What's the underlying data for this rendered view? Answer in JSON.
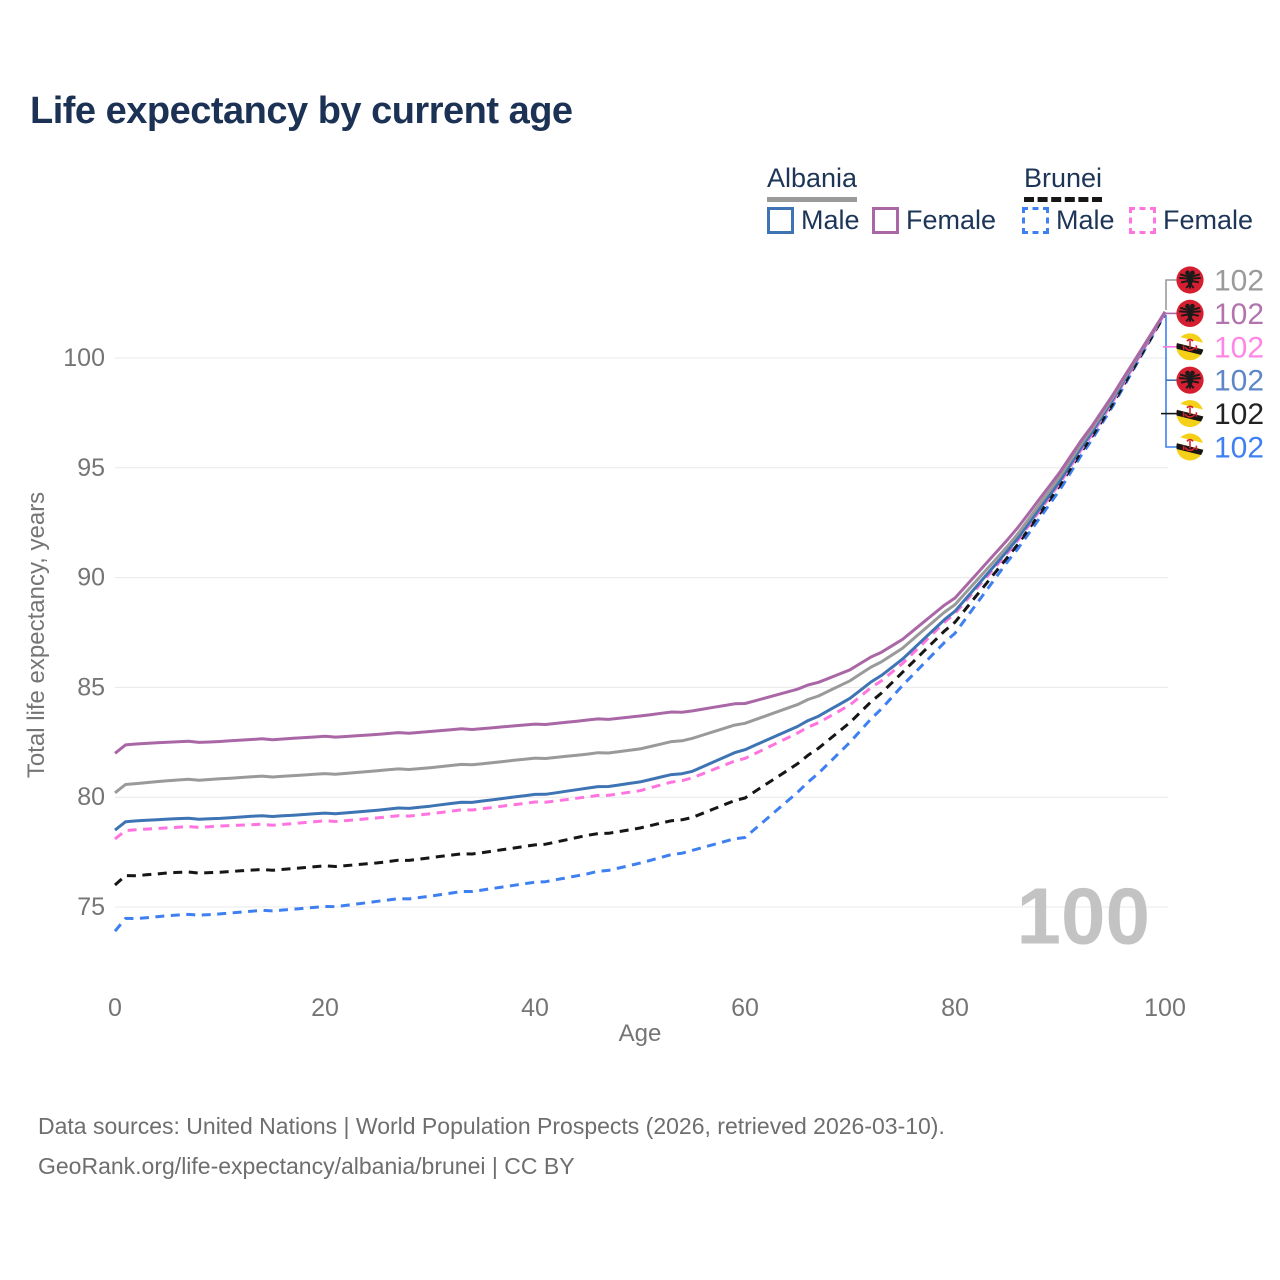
{
  "title": "Life expectancy by current age",
  "legend": {
    "groups": [
      {
        "label": "Albania",
        "style": "solid",
        "underline_color": "#9a9a9a",
        "items": [
          {
            "label": "Male",
            "color": "#3e74b4",
            "dash": false
          },
          {
            "label": "Female",
            "color": "#aa67a6",
            "dash": false
          }
        ]
      },
      {
        "label": "Brunei",
        "style": "dashed",
        "underline_color": "#161616",
        "items": [
          {
            "label": "Male",
            "color": "#3e80f2",
            "dash": true
          },
          {
            "label": "Female",
            "color": "#ff74df",
            "dash": true
          }
        ]
      }
    ]
  },
  "chart_data": {
    "type": "line",
    "title": "Life expectancy by current age",
    "xlabel": "Age",
    "ylabel": "Total life expectancy, years",
    "xlim": [
      0,
      100
    ],
    "ylim": [
      73,
      103
    ],
    "x_ticks": [
      0,
      20,
      40,
      60,
      80,
      100
    ],
    "y_ticks": [
      75,
      80,
      85,
      90,
      95,
      100
    ],
    "grid": "horizontal",
    "legend_position": "top-right",
    "watermark": "100",
    "x": [
      0,
      1,
      2,
      5,
      10,
      15,
      20,
      25,
      30,
      35,
      40,
      45,
      50,
      55,
      60,
      65,
      70,
      75,
      80,
      85,
      90,
      95,
      100
    ],
    "series": [
      {
        "name": "Brunei Male",
        "country": "Brunei",
        "sex": "Male",
        "color": "#3e80f2",
        "dash": true,
        "values": [
          73.9,
          74.45,
          74.5,
          74.6,
          74.7,
          74.85,
          75.0,
          75.25,
          75.5,
          75.8,
          76.1,
          76.5,
          77.0,
          77.6,
          78.2,
          80.2,
          82.5,
          85.1,
          87.5,
          90.7,
          94.0,
          97.8,
          102.0
        ]
      },
      {
        "name": "Brunei All",
        "country": "Brunei",
        "sex": "All",
        "color": "#161616",
        "dash": true,
        "values": [
          76.0,
          76.4,
          76.45,
          76.55,
          76.6,
          76.7,
          76.85,
          77.0,
          77.25,
          77.5,
          77.8,
          78.25,
          78.6,
          79.1,
          80.0,
          81.5,
          83.4,
          85.7,
          88.0,
          90.9,
          94.2,
          97.9,
          102.0
        ]
      },
      {
        "name": "Brunei Female",
        "country": "Brunei",
        "sex": "Female",
        "color": "#ff74df",
        "dash": true,
        "values": [
          78.1,
          78.45,
          78.55,
          78.6,
          78.7,
          78.75,
          78.9,
          79.05,
          79.25,
          79.5,
          79.75,
          80.0,
          80.3,
          80.9,
          81.8,
          82.9,
          84.2,
          86.1,
          88.4,
          91.1,
          94.3,
          98.0,
          102.05
        ]
      },
      {
        "name": "Albania Male",
        "country": "Albania",
        "sex": "Male",
        "color": "#3e74b4",
        "dash": false,
        "values": [
          78.5,
          78.85,
          78.95,
          79.0,
          79.05,
          79.15,
          79.25,
          79.4,
          79.6,
          79.85,
          80.1,
          80.4,
          80.7,
          81.2,
          82.2,
          83.2,
          84.5,
          86.3,
          88.5,
          91.2,
          94.4,
          98.1,
          102.1
        ]
      },
      {
        "name": "Albania All",
        "country": "Albania",
        "sex": "All",
        "color": "#9a9a9a",
        "dash": false,
        "values": [
          80.2,
          80.55,
          80.65,
          80.75,
          80.85,
          80.95,
          81.05,
          81.2,
          81.35,
          81.55,
          81.75,
          81.95,
          82.2,
          82.7,
          83.4,
          84.2,
          85.3,
          86.8,
          88.8,
          91.4,
          94.6,
          98.2,
          102.1
        ]
      },
      {
        "name": "Albania Female",
        "country": "Albania",
        "sex": "Female",
        "color": "#aa67a6",
        "dash": false,
        "values": [
          82.0,
          82.35,
          82.45,
          82.5,
          82.55,
          82.65,
          82.75,
          82.85,
          83.0,
          83.15,
          83.3,
          83.5,
          83.7,
          83.95,
          84.3,
          84.9,
          85.8,
          87.2,
          89.1,
          91.7,
          94.8,
          98.3,
          102.1
        ]
      }
    ],
    "end_labels": [
      {
        "value": "102",
        "flag": "albania",
        "series": "Albania All",
        "color": "#9a9a9a"
      },
      {
        "value": "102",
        "flag": "albania",
        "series": "Albania Female",
        "color": "#b273ae"
      },
      {
        "value": "102",
        "flag": "brunei",
        "series": "Brunei Female",
        "color": "#ff85e6"
      },
      {
        "value": "102",
        "flag": "albania",
        "series": "Albania Male",
        "color": "#5d87c6"
      },
      {
        "value": "102",
        "flag": "brunei",
        "series": "Brunei All",
        "color": "#222222"
      },
      {
        "value": "102",
        "flag": "brunei",
        "series": "Brunei Male",
        "color": "#3e80f2"
      }
    ]
  },
  "footer": {
    "line1": "Data sources: United Nations | World Population Prospects (2026, retrieved 2026-03-10).",
    "line2": "GeoRank.org/life-expectancy/albania/brunei | CC BY"
  }
}
